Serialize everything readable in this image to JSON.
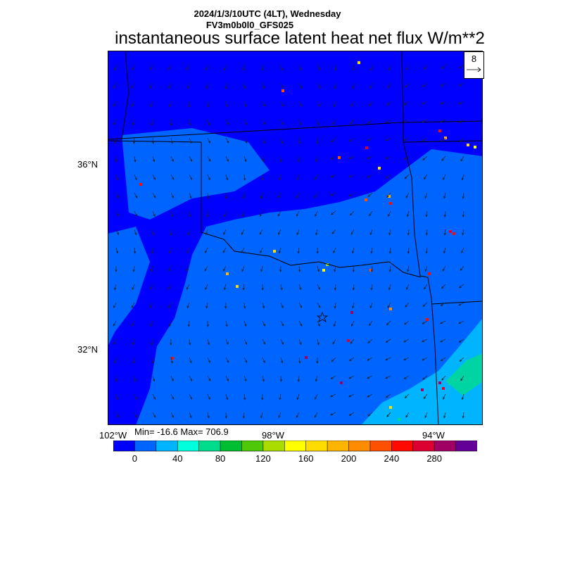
{
  "header": {
    "datetime": "2024/1/3/10UTC (4LT), Wednesday",
    "model": "FV3m0b0l0_GFS025",
    "title": "instantaneous surface latent heat net flux W/m**2"
  },
  "axes": {
    "lat_labels": [
      "36°N",
      "32°N"
    ],
    "lon_labels": [
      "102°W",
      "98°W",
      "94°W"
    ]
  },
  "stats": {
    "text": "Min= -16.6 Max= 706.9"
  },
  "vector_ref": {
    "value": "8"
  },
  "colorbar": {
    "colors": [
      "#0000ff",
      "#0064ff",
      "#00b4ff",
      "#00ffdc",
      "#00dc8c",
      "#00be32",
      "#50c80a",
      "#aadc00",
      "#ffff00",
      "#ffdc00",
      "#ffb400",
      "#ff8c00",
      "#ff5000",
      "#ff0a00",
      "#dc0032",
      "#a00064",
      "#640096"
    ],
    "labels": [
      "0",
      "40",
      "80",
      "120",
      "160",
      "200",
      "240",
      "280"
    ]
  },
  "colors": {
    "background_field": "#0064ff",
    "low_field": "#0000ff",
    "coast_field": "#00b4ff"
  }
}
